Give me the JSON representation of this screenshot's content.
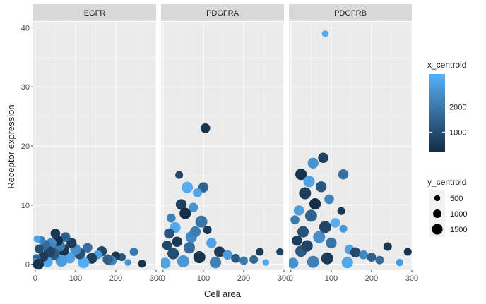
{
  "chart_data": {
    "type": "scatter",
    "xlabel": "Cell area",
    "ylabel": "Receptor expression",
    "xlim": [
      -5,
      300
    ],
    "ylim": [
      -1,
      41
    ],
    "x_ticks": [
      0,
      100,
      200,
      300
    ],
    "x_tick_labels": [
      "0",
      "100",
      "200",
      "300"
    ],
    "y_ticks": [
      0,
      10,
      20,
      30,
      40
    ],
    "y_tick_labels": [
      "0",
      "10",
      "20",
      "30",
      "40"
    ],
    "grid": true,
    "legend_placement": "right",
    "facets": [
      "EGFR",
      "PDGFRA",
      "PDGFRB"
    ],
    "color_legend": {
      "title": "x_centroid",
      "breaks": [
        1000,
        2000
      ],
      "break_labels": [
        "1000",
        "2000"
      ],
      "range": [
        200,
        3300
      ],
      "low_color": "#132B43",
      "high_color": "#56B1F7"
    },
    "size_legend": {
      "title": "y_centroid",
      "breaks": [
        500,
        1000,
        1500
      ],
      "break_labels": [
        "500",
        "1000",
        "1500"
      ]
    },
    "panels": [
      {
        "facet": "EGFR",
        "points": [
          {
            "x": 265,
            "y": 0.1,
            "c": 400,
            "s": 900
          },
          {
            "x": 245,
            "y": 2.1,
            "c": 2000,
            "s": 1000
          },
          {
            "x": 230,
            "y": 0.3,
            "c": 2600,
            "s": 700
          },
          {
            "x": 215,
            "y": 1.2,
            "c": 1200,
            "s": 900
          },
          {
            "x": 200,
            "y": 1.4,
            "c": 500,
            "s": 1100
          },
          {
            "x": 190,
            "y": 0.6,
            "c": 2300,
            "s": 1200
          },
          {
            "x": 180,
            "y": 0.8,
            "c": 1500,
            "s": 1300
          },
          {
            "x": 165,
            "y": 2.2,
            "c": 900,
            "s": 1300
          },
          {
            "x": 155,
            "y": 1.6,
            "c": 2900,
            "s": 1100
          },
          {
            "x": 140,
            "y": 1.0,
            "c": 700,
            "s": 1400
          },
          {
            "x": 130,
            "y": 2.8,
            "c": 1800,
            "s": 1200
          },
          {
            "x": 120,
            "y": 0.3,
            "c": 3200,
            "s": 1500
          },
          {
            "x": 110,
            "y": 1.8,
            "c": 1100,
            "s": 1500
          },
          {
            "x": 100,
            "y": 2.5,
            "c": 2500,
            "s": 1400
          },
          {
            "x": 90,
            "y": 3.6,
            "c": 600,
            "s": 1300
          },
          {
            "x": 85,
            "y": 1.1,
            "c": 3000,
            "s": 1500
          },
          {
            "x": 75,
            "y": 4.6,
            "c": 1500,
            "s": 1200
          },
          {
            "x": 70,
            "y": 2.4,
            "c": 400,
            "s": 1500
          },
          {
            "x": 65,
            "y": 0.6,
            "c": 2800,
            "s": 1600
          },
          {
            "x": 60,
            "y": 3.1,
            "c": 2100,
            "s": 1500
          },
          {
            "x": 55,
            "y": 4.0,
            "c": 300,
            "s": 1400
          },
          {
            "x": 50,
            "y": 5.2,
            "c": 500,
            "s": 1200
          },
          {
            "x": 45,
            "y": 1.7,
            "c": 1300,
            "s": 1600
          },
          {
            "x": 40,
            "y": 3.6,
            "c": 2400,
            "s": 1300
          },
          {
            "x": 35,
            "y": 2.1,
            "c": 800,
            "s": 1500
          },
          {
            "x": 30,
            "y": 0.4,
            "c": 3100,
            "s": 1400
          },
          {
            "x": 25,
            "y": 3.3,
            "c": 1700,
            "s": 1200
          },
          {
            "x": 20,
            "y": 1.3,
            "c": 600,
            "s": 1300
          },
          {
            "x": 15,
            "y": 4.1,
            "c": 2200,
            "s": 900
          },
          {
            "x": 10,
            "y": 2.6,
            "c": 1000,
            "s": 1100
          },
          {
            "x": 5,
            "y": 4.3,
            "c": 3000,
            "s": 800
          },
          {
            "x": 3,
            "y": 1.0,
            "c": 1600,
            "s": 1000
          },
          {
            "x": 0,
            "y": 0.2,
            "c": 2500,
            "s": 1200
          },
          {
            "x": 8,
            "y": 0.0,
            "c": 400,
            "s": 1400
          }
        ]
      },
      {
        "facet": "PDGFRA",
        "points": [
          {
            "x": 105,
            "y": 23.0,
            "c": 400,
            "s": 1200
          },
          {
            "x": 40,
            "y": 15.1,
            "c": 800,
            "s": 900
          },
          {
            "x": 60,
            "y": 13.0,
            "c": 3200,
            "s": 1500
          },
          {
            "x": 100,
            "y": 13.0,
            "c": 1500,
            "s": 1300
          },
          {
            "x": 85,
            "y": 12.1,
            "c": 3000,
            "s": 1100
          },
          {
            "x": 45,
            "y": 10.1,
            "c": 700,
            "s": 1400
          },
          {
            "x": 75,
            "y": 9.6,
            "c": 2600,
            "s": 1200
          },
          {
            "x": 55,
            "y": 8.6,
            "c": 300,
            "s": 1500
          },
          {
            "x": 20,
            "y": 7.8,
            "c": 2200,
            "s": 1100
          },
          {
            "x": 95,
            "y": 7.2,
            "c": 1900,
            "s": 1600
          },
          {
            "x": 30,
            "y": 6.2,
            "c": 3100,
            "s": 1400
          },
          {
            "x": 110,
            "y": 5.8,
            "c": 500,
            "s": 1000
          },
          {
            "x": 15,
            "y": 5.2,
            "c": 1200,
            "s": 1300
          },
          {
            "x": 70,
            "y": 4.6,
            "c": 2400,
            "s": 1500
          },
          {
            "x": 120,
            "y": 3.6,
            "c": 3000,
            "s": 1300
          },
          {
            "x": 10,
            "y": 3.2,
            "c": 900,
            "s": 1200
          },
          {
            "x": 140,
            "y": 2.1,
            "c": 600,
            "s": 1400
          },
          {
            "x": 160,
            "y": 1.6,
            "c": 2800,
            "s": 1200
          },
          {
            "x": 180,
            "y": 1.0,
            "c": 1300,
            "s": 1100
          },
          {
            "x": 200,
            "y": 0.6,
            "c": 2000,
            "s": 1000
          },
          {
            "x": 240,
            "y": 2.1,
            "c": 500,
            "s": 900
          },
          {
            "x": 290,
            "y": 2.1,
            "c": 700,
            "s": 800
          },
          {
            "x": 255,
            "y": 0.3,
            "c": 3100,
            "s": 700
          },
          {
            "x": 225,
            "y": 0.8,
            "c": 1600,
            "s": 1000
          },
          {
            "x": 130,
            "y": 0.3,
            "c": 2200,
            "s": 1500
          },
          {
            "x": 90,
            "y": 1.2,
            "c": 400,
            "s": 1600
          },
          {
            "x": 50,
            "y": 0.5,
            "c": 2700,
            "s": 1600
          },
          {
            "x": 25,
            "y": 1.8,
            "c": 1000,
            "s": 1500
          },
          {
            "x": 5,
            "y": 0.2,
            "c": 3000,
            "s": 1400
          },
          {
            "x": 65,
            "y": 2.8,
            "c": 1700,
            "s": 1500
          },
          {
            "x": 35,
            "y": 3.8,
            "c": 500,
            "s": 1300
          },
          {
            "x": 80,
            "y": 5.5,
            "c": 2100,
            "s": 1400
          }
        ]
      },
      {
        "facet": "PDGFRB",
        "points": [
          {
            "x": 85,
            "y": 39.0,
            "c": 3100,
            "s": 700
          },
          {
            "x": 80,
            "y": 18.0,
            "c": 700,
            "s": 1300
          },
          {
            "x": 55,
            "y": 17.1,
            "c": 2600,
            "s": 1400
          },
          {
            "x": 25,
            "y": 15.2,
            "c": 400,
            "s": 1500
          },
          {
            "x": 130,
            "y": 15.2,
            "c": 1800,
            "s": 1300
          },
          {
            "x": 45,
            "y": 14.0,
            "c": 3000,
            "s": 1500
          },
          {
            "x": 75,
            "y": 13.1,
            "c": 1200,
            "s": 1400
          },
          {
            "x": 35,
            "y": 12.0,
            "c": 600,
            "s": 1600
          },
          {
            "x": 95,
            "y": 11.0,
            "c": 2300,
            "s": 1200
          },
          {
            "x": 60,
            "y": 10.2,
            "c": 300,
            "s": 1500
          },
          {
            "x": 20,
            "y": 9.1,
            "c": 2900,
            "s": 1300
          },
          {
            "x": 125,
            "y": 9.0,
            "c": 500,
            "s": 900
          },
          {
            "x": 50,
            "y": 8.2,
            "c": 1500,
            "s": 1600
          },
          {
            "x": 10,
            "y": 7.5,
            "c": 2000,
            "s": 1100
          },
          {
            "x": 110,
            "y": 7.0,
            "c": 3200,
            "s": 1200
          },
          {
            "x": 85,
            "y": 6.3,
            "c": 800,
            "s": 1600
          },
          {
            "x": 130,
            "y": 6.0,
            "c": 2700,
            "s": 900
          },
          {
            "x": 30,
            "y": 5.5,
            "c": 1100,
            "s": 1500
          },
          {
            "x": 70,
            "y": 4.6,
            "c": 2500,
            "s": 1600
          },
          {
            "x": 15,
            "y": 4.0,
            "c": 600,
            "s": 1300
          },
          {
            "x": 100,
            "y": 3.6,
            "c": 1900,
            "s": 1400
          },
          {
            "x": 145,
            "y": 2.5,
            "c": 3000,
            "s": 1200
          },
          {
            "x": 160,
            "y": 2.0,
            "c": 900,
            "s": 1300
          },
          {
            "x": 180,
            "y": 1.6,
            "c": 2400,
            "s": 1100
          },
          {
            "x": 200,
            "y": 1.2,
            "c": 1400,
            "s": 1100
          },
          {
            "x": 240,
            "y": 3.0,
            "c": 500,
            "s": 1000
          },
          {
            "x": 290,
            "y": 2.1,
            "c": 400,
            "s": 900
          },
          {
            "x": 270,
            "y": 0.3,
            "c": 2800,
            "s": 800
          },
          {
            "x": 220,
            "y": 0.7,
            "c": 1700,
            "s": 1000
          },
          {
            "x": 140,
            "y": 0.3,
            "c": 3100,
            "s": 1500
          },
          {
            "x": 90,
            "y": 1.0,
            "c": 600,
            "s": 1600
          },
          {
            "x": 55,
            "y": 0.4,
            "c": 2200,
            "s": 1600
          },
          {
            "x": 25,
            "y": 2.2,
            "c": 1300,
            "s": 1500
          },
          {
            "x": 5,
            "y": 0.2,
            "c": 2600,
            "s": 1400
          },
          {
            "x": 40,
            "y": 3.1,
            "c": 800,
            "s": 1500
          }
        ]
      }
    ]
  }
}
